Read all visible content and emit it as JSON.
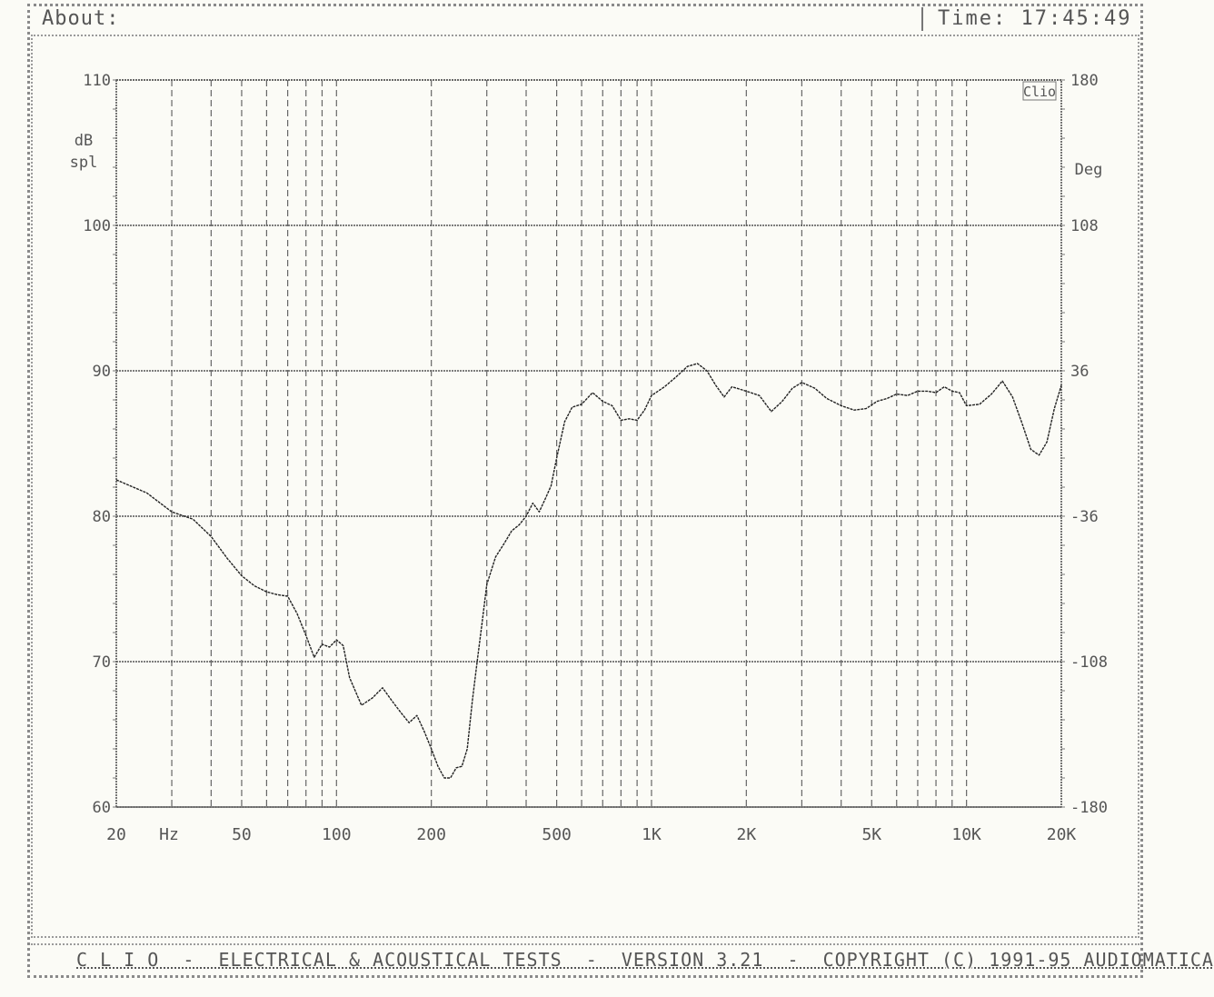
{
  "window": {
    "about_label": "About:",
    "time_label": "Time:",
    "time_value": "17:45:49"
  },
  "footer": {
    "text": "C L I O  -  ELECTRICAL & ACOUSTICAL TESTS  -  VERSION 3.21  -  COPYRIGHT (C) 1991-95 AUDIOMATICA"
  },
  "chart_data": {
    "type": "line",
    "title": "",
    "ylabel": "dB spl",
    "y2label": "Deg",
    "xlabel": "Hz",
    "x_scale": "log",
    "xlim": [
      20,
      20000
    ],
    "ylim": [
      60,
      110
    ],
    "y2lim": [
      -180,
      180
    ],
    "y_ticks": [
      60,
      70,
      80,
      90,
      100,
      110
    ],
    "y_tick_labels": [
      "60",
      "70",
      "80",
      "90",
      "100",
      "110"
    ],
    "y2_ticks": [
      -180,
      -108,
      -36,
      36,
      108,
      180
    ],
    "y2_tick_labels": [
      "-180",
      "-108",
      "-36",
      "36",
      "108",
      "180"
    ],
    "x_ticks": [
      20,
      50,
      100,
      200,
      500,
      1000,
      2000,
      5000,
      10000,
      20000
    ],
    "x_tick_labels": [
      "20",
      "50",
      "100",
      "200",
      "500",
      "1K",
      "2K",
      "5K",
      "10K",
      "20K"
    ],
    "hz_label": "Hz",
    "corner_label": "Clio",
    "grid": true,
    "series": [
      {
        "x": [
          20,
          25,
          30,
          35,
          40,
          45,
          50,
          55,
          60,
          65,
          70,
          75,
          80,
          85,
          90,
          95,
          100,
          105,
          110,
          120,
          130,
          140,
          150,
          160,
          170,
          180,
          190,
          200,
          210,
          220,
          230,
          240,
          250,
          260,
          270,
          280,
          290,
          300,
          320,
          340,
          360,
          380,
          400,
          420,
          440,
          460,
          480,
          500,
          530,
          560,
          600,
          650,
          700,
          750,
          800,
          850,
          900,
          950,
          1000,
          1100,
          1200,
          1300,
          1400,
          1500,
          1600,
          1700,
          1800,
          2000,
          2200,
          2400,
          2600,
          2800,
          3000,
          3300,
          3600,
          4000,
          4400,
          4800,
          5200,
          5600,
          6000,
          6500,
          7000,
          7500,
          8000,
          8500,
          9000,
          9500,
          10000,
          11000,
          12000,
          13000,
          14000,
          15000,
          16000,
          17000,
          18000,
          19000,
          20000
        ],
        "values": [
          82.5,
          81.6,
          80.3,
          79.8,
          78.6,
          77.1,
          75.9,
          75.2,
          74.8,
          74.6,
          74.5,
          73.3,
          71.8,
          70.3,
          71.2,
          71.0,
          71.5,
          71.1,
          68.9,
          67.0,
          67.5,
          68.2,
          67.3,
          66.5,
          65.8,
          66.3,
          65.2,
          64.0,
          62.8,
          62.0,
          62.0,
          62.7,
          62.8,
          64.0,
          67.3,
          70.1,
          72.7,
          75.3,
          77.2,
          78.1,
          79.0,
          79.4,
          80.0,
          80.9,
          80.3,
          81.2,
          82.1,
          84.0,
          86.5,
          87.5,
          87.7,
          88.5,
          87.9,
          87.6,
          86.6,
          86.7,
          86.6,
          87.3,
          88.3,
          88.9,
          89.6,
          90.3,
          90.5,
          90.0,
          89.0,
          88.2,
          88.9,
          88.6,
          88.3,
          87.2,
          87.9,
          88.8,
          89.2,
          88.8,
          88.1,
          87.6,
          87.3,
          87.4,
          87.9,
          88.1,
          88.4,
          88.3,
          88.6,
          88.6,
          88.5,
          88.9,
          88.6,
          88.5,
          87.6,
          87.7,
          88.4,
          89.3,
          88.2,
          86.4,
          84.6,
          84.2,
          85.1,
          87.4,
          89.0
        ]
      }
    ]
  }
}
